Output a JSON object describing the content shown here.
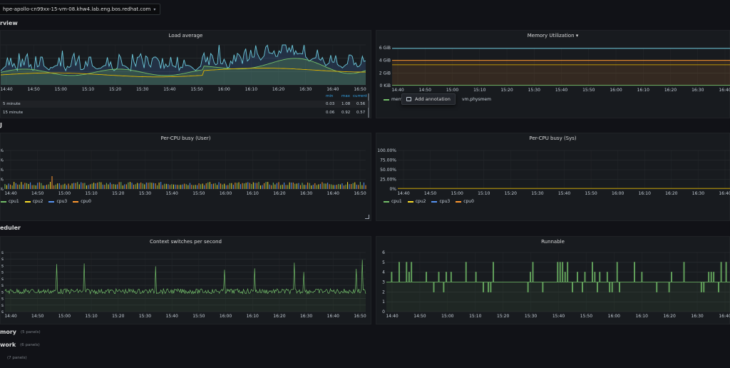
{
  "header": {
    "host": "hpe-apollo-cn99xx-15-vm-08.khw4.lab.eng.bos.redhat.com"
  },
  "rows": {
    "overview": "rview",
    "cpu": "J",
    "scheduler": "eduler",
    "memory": {
      "title": "mory",
      "count": "(5 panels)"
    },
    "network": {
      "title": "work",
      "count": "(6 panels)"
    },
    "last": {
      "title": "",
      "count": "(7 panels)"
    }
  },
  "panels": {
    "load": {
      "title": "Load average",
      "xticks": [
        "14:40",
        "14:50",
        "15:00",
        "15:10",
        "15:20",
        "15:30",
        "15:40",
        "15:50",
        "16:00",
        "16:10",
        "16:20",
        "16:30",
        "16:40",
        "16:50"
      ],
      "table_headers": [
        "min",
        "max",
        "current"
      ],
      "table_rows": [
        {
          "name": "5 minute",
          "min": "0.03",
          "max": "1.08",
          "current": "0.56"
        },
        {
          "name": "15 minute",
          "min": "0.06",
          "max": "0.92",
          "current": "0.57"
        }
      ]
    },
    "memory": {
      "title": "Memory Utilization",
      "title_caret": "▾",
      "yticks": [
        "6 GiB",
        "4 GiB",
        "2 GiB",
        "0 KiB"
      ],
      "xticks": [
        "14:40",
        "14:50",
        "15:00",
        "15:10",
        "15:20",
        "15:30",
        "15:40",
        "15:50",
        "16:00",
        "16:10",
        "16:20",
        "16:30",
        "16:40"
      ],
      "legend_left": "mem",
      "legend_right": "vm.physmem",
      "context_menu": "Add annotation"
    },
    "cpu_user": {
      "title": "Per-CPU busy (User)",
      "yticks": [
        "%",
        "%",
        "%",
        "%",
        "%"
      ],
      "xticks": [
        "14:40",
        "14:50",
        "15:00",
        "15:10",
        "15:20",
        "15:30",
        "15:40",
        "15:50",
        "16:00",
        "16:10",
        "16:20",
        "16:30",
        "16:40",
        "16:50"
      ],
      "legend": [
        "cpu1",
        "cpu2",
        "cpu3",
        "cpu0"
      ]
    },
    "cpu_sys": {
      "title": "Per-CPU busy (Sys)",
      "yticks": [
        "100.00%",
        "75.00%",
        "50.00%",
        "25.00%",
        "0%"
      ],
      "xticks": [
        "14:40",
        "14:50",
        "15:00",
        "15:10",
        "15:20",
        "15:30",
        "15:40",
        "15:50",
        "16:00",
        "16:10",
        "16:20",
        "16:30",
        "16:40"
      ],
      "legend": [
        "cpu1",
        "cpu2",
        "cpu3",
        "cpu0"
      ]
    },
    "ctx": {
      "title": "Context switches per second",
      "yticks": [
        "s",
        "s",
        "s",
        "s",
        "s",
        "s",
        "s",
        "s",
        "s",
        "s"
      ],
      "xticks": [
        "14:40",
        "14:50",
        "15:00",
        "15:10",
        "15:20",
        "15:30",
        "15:40",
        "15:50",
        "16:00",
        "16:10",
        "16:20",
        "16:30",
        "16:40",
        "16:50"
      ]
    },
    "runnable": {
      "title": "Runnable",
      "yticks": [
        "6",
        "5",
        "4",
        "3",
        "2",
        "1",
        "0"
      ],
      "xticks": [
        "14:40",
        "14:50",
        "15:00",
        "15:10",
        "15:20",
        "15:30",
        "15:40",
        "15:50",
        "16:00",
        "16:10",
        "16:20",
        "16:30",
        "16:40"
      ]
    }
  },
  "colors": {
    "green": "#73bf69",
    "yellow": "#fade2a",
    "blue": "#5794f2",
    "orange": "#ff9830",
    "red": "#f2495c",
    "cyan": "#8ab8ff",
    "panel_bg": "#181b1f"
  }
}
